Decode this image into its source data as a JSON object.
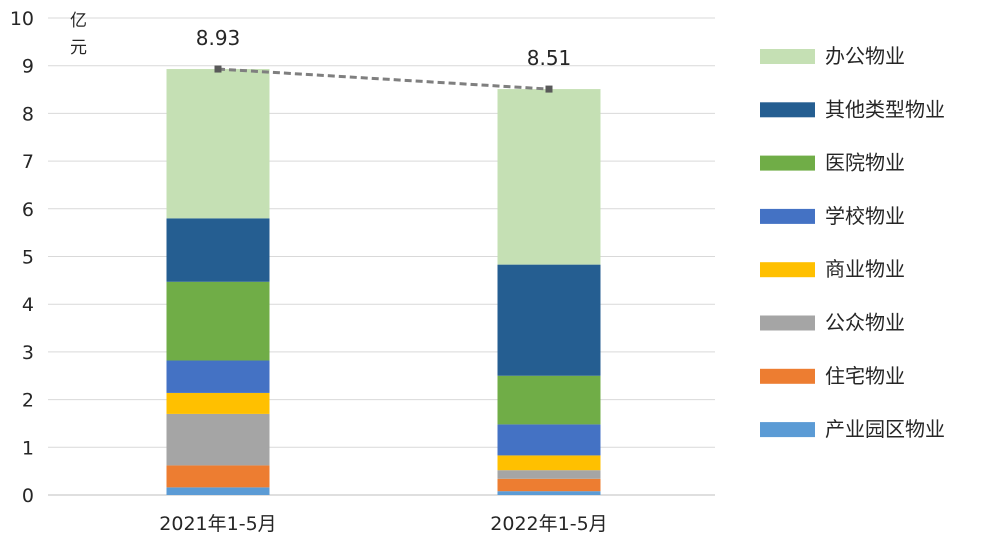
{
  "chart_data": {
    "type": "bar",
    "stacked": true,
    "title": "",
    "ylabel": "",
    "unit_label": [
      "亿",
      "元"
    ],
    "ylim": [
      0,
      10
    ],
    "yticks": [
      0,
      1,
      2,
      3,
      4,
      5,
      6,
      7,
      8,
      9,
      10
    ],
    "grid": true,
    "legend_position": "right",
    "categories": [
      "2021年1-5月",
      "2022年1-5月"
    ],
    "series": [
      {
        "name": "产业园区物业",
        "color": "#5B9BD5",
        "values": [
          0.16,
          0.08
        ]
      },
      {
        "name": "住宅物业",
        "color": "#ED7D31",
        "values": [
          0.46,
          0.26
        ]
      },
      {
        "name": "公众物业",
        "color": "#A5A5A5",
        "values": [
          1.08,
          0.18
        ]
      },
      {
        "name": "商业物业",
        "color": "#FFC000",
        "values": [
          0.44,
          0.31
        ]
      },
      {
        "name": "学校物业",
        "color": "#4472C4",
        "values": [
          0.68,
          0.65
        ]
      },
      {
        "name": "医院物业",
        "color": "#70AD47",
        "values": [
          1.65,
          1.02
        ]
      },
      {
        "name": "其他类型物业",
        "color": "#255E91",
        "values": [
          1.33,
          2.33
        ]
      },
      {
        "name": "办公物业",
        "color": "#C5E0B4",
        "values": [
          3.13,
          3.68
        ]
      }
    ],
    "totals": [
      8.93,
      8.51
    ],
    "total_labels": [
      "8.93",
      "8.51"
    ],
    "total_line_color": "#7F7F7F"
  }
}
